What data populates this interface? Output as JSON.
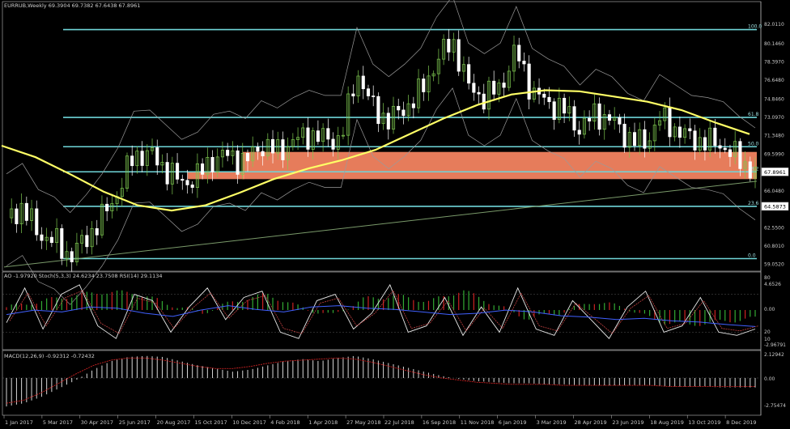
{
  "colors": {
    "background": "#000000",
    "bull_candle": "#7ec850",
    "bear_candle": "#ffffff",
    "ma_line": "#ffff66",
    "fib_line": "#6fd6d9",
    "zone_fill": "#ff8a65",
    "trend_line": "#7a9a6a",
    "bollinger": "#9a9a9a",
    "ao_positive": "#33aa33",
    "ao_negative": "#cc2222",
    "stoch_main": "#e8e8e8",
    "stoch_signal": "#c04040",
    "rsi_line": "#4060ff",
    "macd_hist": "#d8d8d8",
    "macd_signal": "#cc2222"
  },
  "main_header": "EURRUB,Weekly  69.3904 69.7382 67.6438 67.8961",
  "ind_header": "AO -1.97920  Stoch(5,3,3) 24.6234 23.7508  RSI(14) 29.1134",
  "macd_header": "MACD(12,26,9) -0.92312 -0.72432",
  "price_axis": [
    "82.0110",
    "80.1460",
    "78.3970",
    "76.6480",
    "74.8460",
    "73.0970",
    "71.3480",
    "69.5990",
    "66.0480",
    "62.5500",
    "60.8010",
    "59.0520"
  ],
  "current_price": "67.8961",
  "fib_price_label": "64.5873",
  "fib_levels": [
    {
      "label": "100.0",
      "price": 81.5
    },
    {
      "label": "61.8",
      "price": 73.1
    },
    {
      "label": "50.0",
      "price": 70.3
    },
    {
      "label": "38.2",
      "price": 67.9
    },
    {
      "label": "23.6",
      "price": 64.6
    },
    {
      "label": "0.0",
      "price": 59.6
    }
  ],
  "ind_axis": [
    "80",
    "4.6526",
    "0.00",
    "20",
    "10",
    "-2.96791"
  ],
  "macd_axis": [
    "2.12942",
    "0.00",
    "-2.75474"
  ],
  "x_dates": [
    "1 Jan 2017",
    "5 Mar 2017",
    "30 Apr 2017",
    "25 Jun 2017",
    "20 Aug 2017",
    "15 Oct 2017",
    "10 Dec 2017",
    "4 Feb 2018",
    "1 Apr 2018",
    "27 May 2018",
    "22 Jul 2018",
    "16 Sep 2018",
    "11 Nov 2018",
    "6 Jan 2019",
    "3 Mar 2019",
    "28 Apr 2019",
    "23 Jun 2019",
    "18 Aug 2019",
    "13 Oct 2019",
    "8 Dec 2019"
  ],
  "chart_data": {
    "type": "candlestick",
    "symbol": "EURRUB",
    "timeframe": "Weekly",
    "ylim": [
      58.4,
      83.4
    ],
    "x": [
      "1 Jan 2017",
      "5 Mar 2017",
      "30 Apr 2017",
      "25 Jun 2017",
      "20 Aug 2017",
      "15 Oct 2017",
      "10 Dec 2017",
      "4 Feb 2018",
      "1 Apr 2018",
      "27 May 2018",
      "22 Jul 2018",
      "16 Sep 2018",
      "11 Nov 2018",
      "6 Jan 2019",
      "3 Mar 2019",
      "28 Apr 2019",
      "23 Jun 2019",
      "18 Aug 2019",
      "13 Oct 2019",
      "8 Dec 2019"
    ],
    "close_path": [
      63.5,
      64.5,
      62.0,
      61.3,
      59.8,
      61.5,
      63.5,
      66.0,
      69.5,
      69.6,
      68.2,
      66.8,
      67.5,
      69.2,
      69.5,
      68.8,
      70.5,
      69.8,
      70.8,
      71.5,
      71.0,
      71.0,
      77.5,
      74.0,
      72.8,
      74.0,
      75.5,
      78.5,
      80.5,
      76.0,
      75.0,
      76.0,
      79.5,
      75.5,
      74.5,
      73.8,
      72.0,
      73.5,
      72.8,
      71.2,
      70.5,
      73.0,
      72.0,
      71.0,
      70.8,
      70.4,
      69.0,
      67.9
    ],
    "moving_average": [
      70.4,
      69.3,
      67.7,
      66.0,
      64.7,
      64.2,
      64.7,
      65.9,
      67.2,
      68.2,
      69.0,
      70.0,
      71.5,
      73.0,
      74.3,
      75.3,
      75.7,
      75.6,
      75.1,
      74.6,
      73.8,
      72.6,
      71.5
    ],
    "fib_zone": [
      67.2,
      69.8
    ],
    "ao": [
      0.5,
      1.5,
      2.5,
      3.2,
      3.0,
      1.0,
      -0.5,
      1.5,
      2.8,
      0.5,
      -1.0,
      2.0,
      2.5,
      1.5,
      3.5,
      1.0,
      -1.5,
      -0.5,
      1.5,
      0.5,
      -2.0,
      -2.6,
      -2.0,
      -1.5
    ],
    "stoch": [
      35,
      90,
      25,
      80,
      95,
      30,
      10,
      80,
      70,
      20,
      60,
      90,
      40,
      75,
      85,
      20,
      10,
      70,
      80,
      25,
      50,
      95,
      20,
      30,
      75,
      15,
      60,
      20,
      90,
      25,
      15,
      70,
      40,
      10,
      60,
      85,
      20,
      30,
      75,
      20,
      15,
      25
    ],
    "rsi": [
      48,
      55,
      52,
      60,
      58,
      50,
      45,
      55,
      62,
      56,
      52,
      60,
      62,
      58,
      56,
      52,
      48,
      50,
      55,
      52,
      46,
      44,
      40,
      42,
      38,
      36,
      32,
      29
    ],
    "macd_hist": [
      -2.7,
      -2.4,
      -1.8,
      -1.0,
      -0.2,
      0.8,
      1.6,
      2.0,
      2.1,
      2.0,
      1.6,
      1.2,
      0.9,
      0.6,
      0.8,
      1.2,
      1.6,
      1.8,
      1.6,
      1.9,
      2.1,
      1.8,
      1.4,
      1.0,
      0.6,
      0.2,
      -0.1,
      -0.3,
      -0.4,
      -0.5,
      -0.5,
      -0.6,
      -0.6,
      -0.7,
      -0.7,
      -0.7,
      -0.7,
      -0.7,
      -0.8,
      -0.8,
      -0.8,
      -0.9,
      -0.9,
      -0.9
    ],
    "macd_signal": [
      -2.4,
      -2.1,
      -1.4,
      -0.5,
      0.4,
      1.2,
      1.7,
      1.9,
      1.9,
      1.7,
      1.4,
      1.1,
      0.9,
      0.9,
      1.1,
      1.4,
      1.6,
      1.7,
      1.8,
      1.9,
      1.8,
      1.5,
      1.1,
      0.7,
      0.3,
      0.0,
      -0.2,
      -0.4,
      -0.5,
      -0.6,
      -0.6,
      -0.6,
      -0.7,
      -0.7,
      -0.7,
      -0.7,
      -0.7,
      -0.7,
      -0.8,
      -0.8,
      -0.8,
      -0.8,
      -0.8,
      -0.8
    ]
  }
}
